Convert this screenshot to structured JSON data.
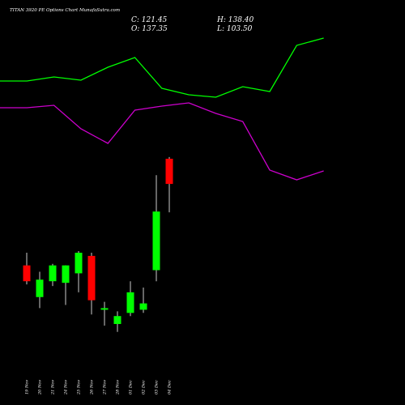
{
  "chart_data": {
    "type": "candlestick",
    "title": "TITAN 3920 PE Options Chart MunafaSutra.com",
    "ohlc_readout": {
      "close": "C: 121.45",
      "open": "O: 137.35",
      "high": "H: 138.40",
      "low": "L: 103.50"
    },
    "dates": [
      "19 Nov",
      "20 Nov",
      "21 Nov",
      "24 Nov",
      "25 Nov",
      "26 Nov",
      "27 Nov",
      "28 Nov",
      "01 Dec",
      "02 Dec",
      "03 Dec",
      "04 Dec"
    ],
    "candles": [
      {
        "open": 70.0,
        "high": 78.0,
        "low": 58.0,
        "close": 60.0
      },
      {
        "open": 50.0,
        "high": 66.0,
        "low": 43.0,
        "close": 61.0
      },
      {
        "open": 60.0,
        "high": 71.0,
        "low": 57.0,
        "close": 70.0
      },
      {
        "open": 59.0,
        "high": 70.0,
        "low": 45.0,
        "close": 70.0
      },
      {
        "open": 65.0,
        "high": 79.0,
        "low": 53.0,
        "close": 78.0
      },
      {
        "open": 76.0,
        "high": 78.0,
        "low": 39.0,
        "close": 48.0
      },
      {
        "open": 42.0,
        "high": 47.0,
        "low": 32.0,
        "close": 43.0
      },
      {
        "open": 33.0,
        "high": 41.0,
        "low": 28.0,
        "close": 38.0
      },
      {
        "open": 40.0,
        "high": 60.0,
        "low": 38.0,
        "close": 53.0
      },
      {
        "open": 42.0,
        "high": 56.0,
        "low": 40.0,
        "close": 46.0
      },
      {
        "open": 67.0,
        "high": 127.0,
        "low": 60.0,
        "close": 104.0
      },
      {
        "open": 137.35,
        "high": 138.4,
        "low": 103.5,
        "close": 121.45
      }
    ],
    "green_line": [
      400,
      400,
      405,
      401,
      417,
      429,
      391,
      383,
      380,
      393,
      387,
      444,
      453
    ],
    "magenta_line": [
      367,
      367,
      370,
      341,
      323,
      364,
      369,
      373,
      360,
      350,
      290,
      278,
      289
    ],
    "colors": {
      "up": "#00ff00",
      "down": "#ff0000",
      "green_line": "#00ff00",
      "magenta_line": "#cc00cc",
      "background": "#000000",
      "text": "#ffffff"
    }
  }
}
